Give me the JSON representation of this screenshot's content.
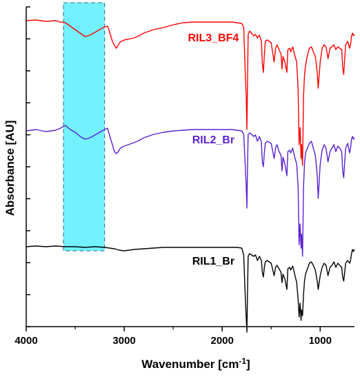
{
  "chart_data": {
    "type": "line",
    "title": "",
    "xlabel": "Wavenumber [cm",
    "xlabel_sup": "-1",
    "xlabel_end": "]",
    "ylabel": "Absorbance [AU]",
    "xlim": [
      4000,
      650
    ],
    "x_reversed": true,
    "x_ticks": [
      {
        "value": 4000,
        "label": "4000"
      },
      {
        "value": 3000,
        "label": "3000"
      },
      {
        "value": 2000,
        "label": "2000"
      },
      {
        "value": 1000,
        "label": "1000"
      }
    ],
    "y_tick_count": 11,
    "y_scale_labels": false,
    "highlight_region": {
      "x_from": 3620,
      "x_to": 3200,
      "color": "#00e5ff"
    },
    "series": [
      {
        "name": "RIL3_BF4",
        "color": "#ff0000",
        "label_at": 2090,
        "points": [
          [
            4000,
            20
          ],
          [
            3900,
            19
          ],
          [
            3800,
            21
          ],
          [
            3700,
            20
          ],
          [
            3650,
            22
          ],
          [
            3600,
            23
          ],
          [
            3550,
            28
          ],
          [
            3500,
            33
          ],
          [
            3450,
            38
          ],
          [
            3400,
            43
          ],
          [
            3350,
            41
          ],
          [
            3300,
            37
          ],
          [
            3250,
            33
          ],
          [
            3200,
            29
          ],
          [
            3170,
            28
          ],
          [
            3150,
            36
          ],
          [
            3120,
            50
          ],
          [
            3100,
            56
          ],
          [
            3080,
            60
          ],
          [
            3060,
            55
          ],
          [
            3040,
            51
          ],
          [
            3000,
            48
          ],
          [
            2960,
            47
          ],
          [
            2900,
            45
          ],
          [
            2850,
            42
          ],
          [
            2800,
            38
          ],
          [
            2700,
            33
          ],
          [
            2600,
            30
          ],
          [
            2500,
            26
          ],
          [
            2400,
            23
          ],
          [
            2300,
            22
          ],
          [
            2200,
            22
          ],
          [
            2100,
            22
          ],
          [
            2000,
            22
          ],
          [
            1900,
            22
          ],
          [
            1850,
            23
          ],
          [
            1800,
            24
          ],
          [
            1780,
            30
          ],
          [
            1765,
            95
          ],
          [
            1755,
            130
          ],
          [
            1748,
            178
          ],
          [
            1742,
            120
          ],
          [
            1735,
            40
          ],
          [
            1720,
            35
          ],
          [
            1700,
            38
          ],
          [
            1680,
            42
          ],
          [
            1660,
            40
          ],
          [
            1640,
            45
          ],
          [
            1620,
            41
          ],
          [
            1600,
            50
          ],
          [
            1590,
            82
          ],
          [
            1580,
            95
          ],
          [
            1570,
            70
          ],
          [
            1560,
            50
          ],
          [
            1540,
            48
          ],
          [
            1500,
            52
          ],
          [
            1470,
            80
          ],
          [
            1455,
            60
          ],
          [
            1440,
            55
          ],
          [
            1420,
            62
          ],
          [
            1400,
            68
          ],
          [
            1390,
            90
          ],
          [
            1380,
            72
          ],
          [
            1360,
            80
          ],
          [
            1340,
            95
          ],
          [
            1330,
            62
          ],
          [
            1310,
            60
          ],
          [
            1300,
            65
          ],
          [
            1280,
            58
          ],
          [
            1260,
            70
          ],
          [
            1240,
            80
          ],
          [
            1225,
            120
          ],
          [
            1215,
            200
          ],
          [
            1205,
            175
          ],
          [
            1195,
            220
          ],
          [
            1190,
            200
          ],
          [
            1180,
            230
          ],
          [
            1170,
            130
          ],
          [
            1160,
            100
          ],
          [
            1150,
            85
          ],
          [
            1130,
            70
          ],
          [
            1110,
            60
          ],
          [
            1090,
            58
          ],
          [
            1070,
            65
          ],
          [
            1050,
            72
          ],
          [
            1030,
            95
          ],
          [
            1020,
            118
          ],
          [
            1000,
            80
          ],
          [
            980,
            60
          ],
          [
            960,
            55
          ],
          [
            940,
            58
          ],
          [
            920,
            75
          ],
          [
            900,
            60
          ],
          [
            880,
            58
          ],
          [
            860,
            55
          ],
          [
            840,
            62
          ],
          [
            820,
            58
          ],
          [
            800,
            60
          ],
          [
            780,
            62
          ],
          [
            770,
            88
          ],
          [
            760,
            98
          ],
          [
            750,
            75
          ],
          [
            740,
            55
          ],
          [
            720,
            50
          ],
          [
            700,
            60
          ],
          [
            690,
            55
          ],
          [
            680,
            42
          ],
          [
            670,
            38
          ],
          [
            660,
            42
          ],
          [
            650,
            40
          ]
        ]
      },
      {
        "name": "RIL2_Br",
        "color": "#5a1fd1",
        "label_at": 2090,
        "points": [
          [
            4000,
            180
          ],
          [
            3900,
            178
          ],
          [
            3800,
            181
          ],
          [
            3700,
            179
          ],
          [
            3650,
            176
          ],
          [
            3600,
            172
          ],
          [
            3550,
            178
          ],
          [
            3500,
            182
          ],
          [
            3450,
            188
          ],
          [
            3400,
            192
          ],
          [
            3350,
            190
          ],
          [
            3300,
            186
          ],
          [
            3250,
            182
          ],
          [
            3200,
            178
          ],
          [
            3170,
            176
          ],
          [
            3150,
            186
          ],
          [
            3120,
            200
          ],
          [
            3100,
            210
          ],
          [
            3080,
            213
          ],
          [
            3060,
            210
          ],
          [
            3040,
            205
          ],
          [
            3000,
            202
          ],
          [
            2960,
            200
          ],
          [
            2900,
            197
          ],
          [
            2850,
            194
          ],
          [
            2800,
            190
          ],
          [
            2700,
            185
          ],
          [
            2600,
            182
          ],
          [
            2500,
            180
          ],
          [
            2400,
            179
          ],
          [
            2300,
            178
          ],
          [
            2200,
            178
          ],
          [
            2100,
            178
          ],
          [
            2000,
            178
          ],
          [
            1900,
            178
          ],
          [
            1850,
            179
          ],
          [
            1800,
            180
          ],
          [
            1780,
            185
          ],
          [
            1765,
            230
          ],
          [
            1755,
            260
          ],
          [
            1748,
            292
          ],
          [
            1742,
            240
          ],
          [
            1735,
            185
          ],
          [
            1720,
            183
          ],
          [
            1700,
            185
          ],
          [
            1680,
            188
          ],
          [
            1660,
            186
          ],
          [
            1640,
            195
          ],
          [
            1620,
            188
          ],
          [
            1600,
            196
          ],
          [
            1590,
            225
          ],
          [
            1580,
            232
          ],
          [
            1570,
            212
          ],
          [
            1560,
            198
          ],
          [
            1540,
            195
          ],
          [
            1500,
            198
          ],
          [
            1470,
            220
          ],
          [
            1455,
            205
          ],
          [
            1440,
            200
          ],
          [
            1420,
            210
          ],
          [
            1400,
            215
          ],
          [
            1390,
            238
          ],
          [
            1380,
            218
          ],
          [
            1360,
            228
          ],
          [
            1340,
            245
          ],
          [
            1330,
            210
          ],
          [
            1310,
            208
          ],
          [
            1300,
            212
          ],
          [
            1280,
            205
          ],
          [
            1260,
            218
          ],
          [
            1240,
            228
          ],
          [
            1225,
            262
          ],
          [
            1215,
            345
          ],
          [
            1205,
            315
          ],
          [
            1195,
            350
          ],
          [
            1190,
            330
          ],
          [
            1180,
            362
          ],
          [
            1170,
            262
          ],
          [
            1160,
            228
          ],
          [
            1150,
            212
          ],
          [
            1130,
            205
          ],
          [
            1110,
            198
          ],
          [
            1090,
            195
          ],
          [
            1070,
            205
          ],
          [
            1050,
            215
          ],
          [
            1030,
            245
          ],
          [
            1020,
            278
          ],
          [
            1000,
            228
          ],
          [
            980,
            208
          ],
          [
            960,
            200
          ],
          [
            940,
            205
          ],
          [
            920,
            225
          ],
          [
            900,
            210
          ],
          [
            880,
            205
          ],
          [
            860,
            200
          ],
          [
            840,
            210
          ],
          [
            820,
            202
          ],
          [
            800,
            205
          ],
          [
            780,
            210
          ],
          [
            770,
            238
          ],
          [
            760,
            248
          ],
          [
            750,
            225
          ],
          [
            740,
            205
          ],
          [
            720,
            198
          ],
          [
            700,
            212
          ],
          [
            690,
            205
          ],
          [
            680,
            192
          ],
          [
            670,
            188
          ],
          [
            660,
            192
          ],
          [
            650,
            190
          ]
        ]
      },
      {
        "name": "RIL1_Br",
        "color": "#000000",
        "label_at": 2090,
        "points": [
          [
            4000,
            348
          ],
          [
            3900,
            347
          ],
          [
            3800,
            348
          ],
          [
            3700,
            347
          ],
          [
            3600,
            348
          ],
          [
            3500,
            348
          ],
          [
            3400,
            349
          ],
          [
            3300,
            348
          ],
          [
            3200,
            349
          ],
          [
            3100,
            351
          ],
          [
            3050,
            353
          ],
          [
            3000,
            354
          ],
          [
            2950,
            353
          ],
          [
            2900,
            352
          ],
          [
            2800,
            351
          ],
          [
            2700,
            350
          ],
          [
            2600,
            349
          ],
          [
            2500,
            349
          ],
          [
            2400,
            349
          ],
          [
            2300,
            349
          ],
          [
            2200,
            349
          ],
          [
            2100,
            349
          ],
          [
            2000,
            349
          ],
          [
            1900,
            349
          ],
          [
            1850,
            349
          ],
          [
            1800,
            350
          ],
          [
            1780,
            360
          ],
          [
            1765,
            420
          ],
          [
            1755,
            450
          ],
          [
            1748,
            472
          ],
          [
            1742,
            420
          ],
          [
            1735,
            362
          ],
          [
            1720,
            358
          ],
          [
            1700,
            360
          ],
          [
            1680,
            362
          ],
          [
            1660,
            360
          ],
          [
            1640,
            368
          ],
          [
            1620,
            362
          ],
          [
            1600,
            368
          ],
          [
            1590,
            385
          ],
          [
            1580,
            392
          ],
          [
            1570,
            378
          ],
          [
            1560,
            370
          ],
          [
            1540,
            368
          ],
          [
            1500,
            372
          ],
          [
            1470,
            390
          ],
          [
            1455,
            378
          ],
          [
            1440,
            375
          ],
          [
            1420,
            380
          ],
          [
            1400,
            385
          ],
          [
            1390,
            400
          ],
          [
            1380,
            388
          ],
          [
            1360,
            395
          ],
          [
            1340,
            410
          ],
          [
            1330,
            380
          ],
          [
            1310,
            378
          ],
          [
            1300,
            382
          ],
          [
            1280,
            376
          ],
          [
            1260,
            388
          ],
          [
            1240,
            400
          ],
          [
            1225,
            425
          ],
          [
            1215,
            450
          ],
          [
            1205,
            430
          ],
          [
            1195,
            455
          ],
          [
            1190,
            440
          ],
          [
            1180,
            448
          ],
          [
            1170,
            418
          ],
          [
            1160,
            398
          ],
          [
            1150,
            388
          ],
          [
            1130,
            380
          ],
          [
            1110,
            372
          ],
          [
            1090,
            370
          ],
          [
            1070,
            375
          ],
          [
            1050,
            382
          ],
          [
            1030,
            398
          ],
          [
            1020,
            410
          ],
          [
            1000,
            390
          ],
          [
            980,
            378
          ],
          [
            960,
            372
          ],
          [
            940,
            375
          ],
          [
            920,
            390
          ],
          [
            900,
            378
          ],
          [
            880,
            375
          ],
          [
            860,
            370
          ],
          [
            840,
            378
          ],
          [
            820,
            372
          ],
          [
            800,
            375
          ],
          [
            780,
            378
          ],
          [
            770,
            392
          ],
          [
            760,
            398
          ],
          [
            750,
            385
          ],
          [
            740,
            372
          ],
          [
            720,
            368
          ],
          [
            700,
            372
          ],
          [
            690,
            368
          ],
          [
            680,
            358
          ],
          [
            670,
            352
          ],
          [
            660,
            355
          ],
          [
            650,
            352
          ]
        ]
      }
    ]
  }
}
